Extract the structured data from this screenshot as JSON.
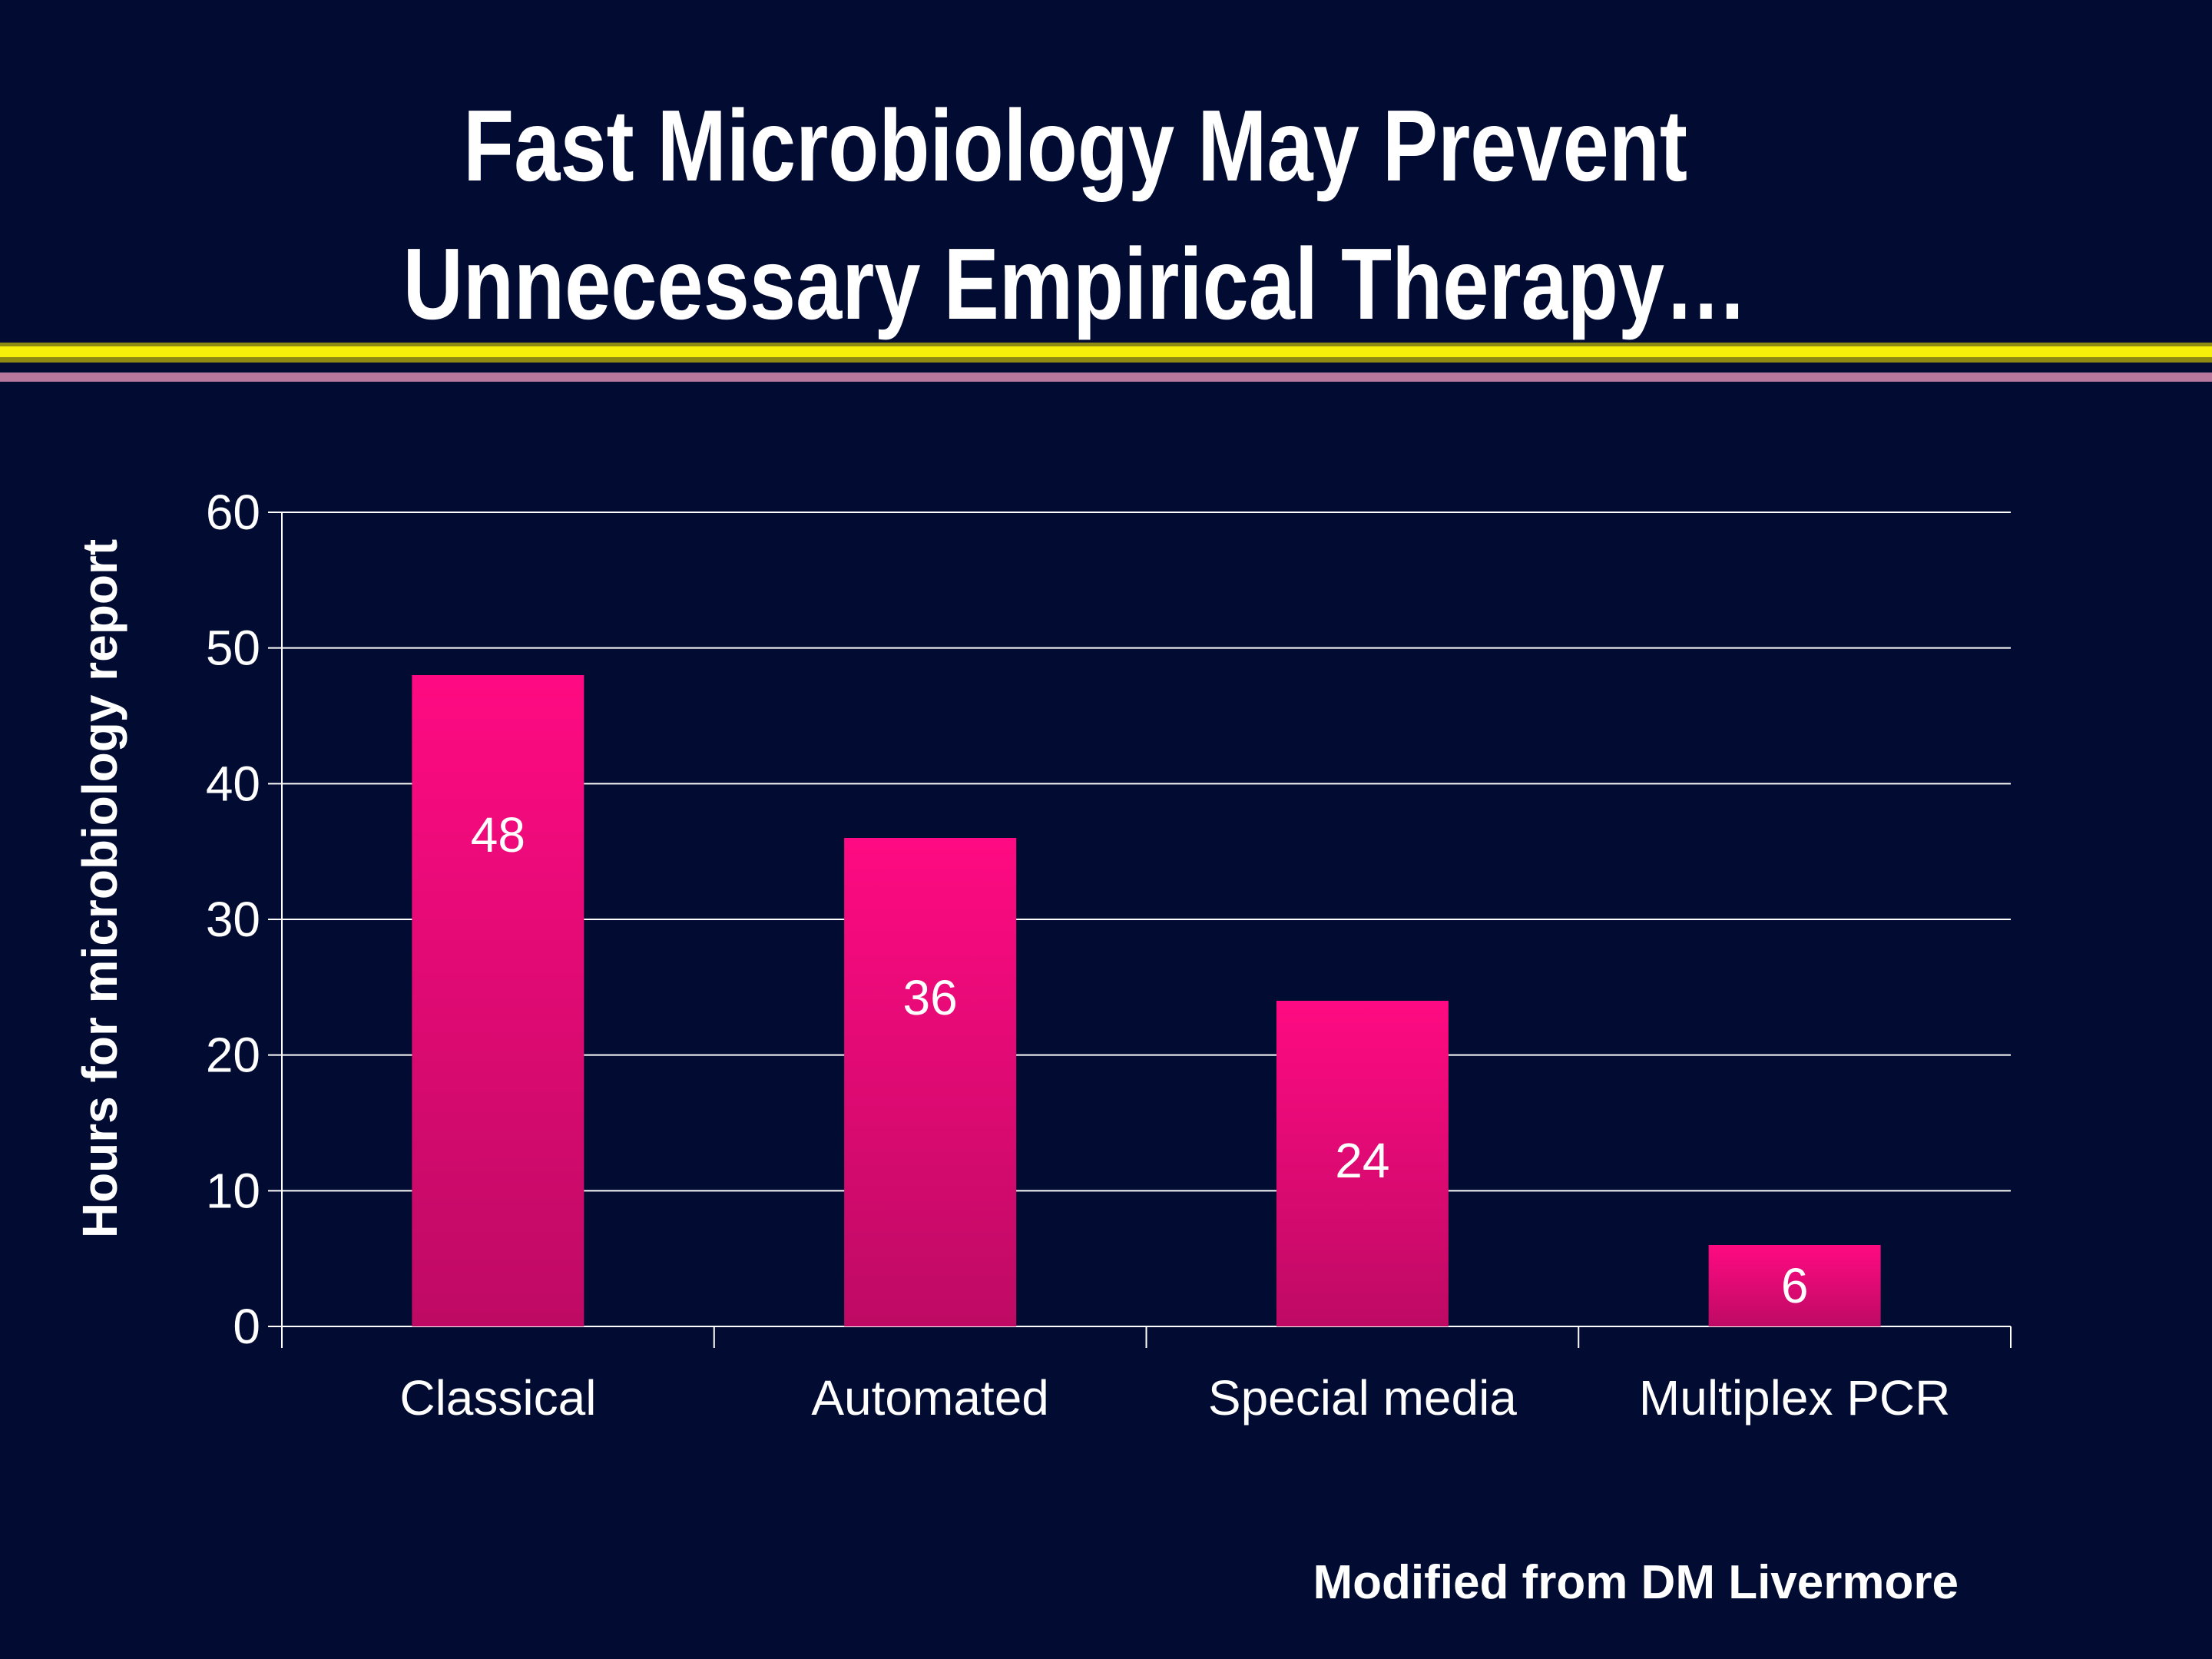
{
  "slide": {
    "title_line1": "Fast Microbiology May Prevent",
    "title_line2": "Unnecessary Empirical Therapy…",
    "credit": "Modified from DM Livermore"
  },
  "colors": {
    "background": "#020c33",
    "bar_top": "#ff0a82",
    "bar_bottom": "#be0a64",
    "rule_yellow": "#f7f00a",
    "rule_olive": "#8e8a12",
    "rule_pink": "#b8779d"
  },
  "chart_data": {
    "type": "bar",
    "categories": [
      "Classical",
      "Automated",
      "Special media",
      "Multiplex PCR"
    ],
    "values": [
      48,
      36,
      24,
      6
    ],
    "data_labels": [
      "48",
      "36",
      "24",
      "6"
    ],
    "ylabel": "Hours for microbiology report",
    "xlabel": "",
    "ylim": [
      0,
      60
    ],
    "yticks": [
      0,
      10,
      20,
      30,
      40,
      50,
      60
    ],
    "ytick_labels": [
      "0",
      "10",
      "20",
      "30",
      "40",
      "50",
      "60"
    ],
    "grid": true,
    "legend": "none"
  }
}
